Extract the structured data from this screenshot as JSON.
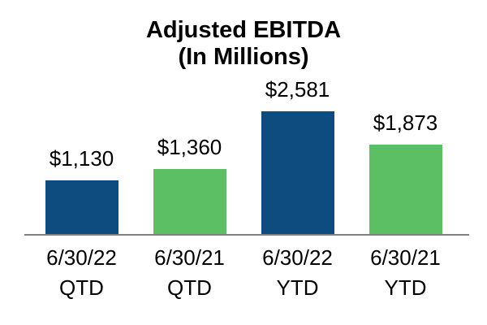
{
  "chart_data": {
    "type": "bar",
    "title": "Adjusted EBITDA",
    "subtitle": "(In Millions)",
    "categories": [
      "6/30/22 QTD",
      "6/30/21 QTD",
      "6/30/22 YTD",
      "6/30/21 YTD"
    ],
    "category_lines": [
      [
        "6/30/22",
        "QTD"
      ],
      [
        "6/30/21",
        "QTD"
      ],
      [
        "6/30/22",
        "YTD"
      ],
      [
        "6/30/21",
        "YTD"
      ]
    ],
    "values": [
      1130,
      1360,
      2581,
      1873
    ],
    "value_labels": [
      "$1,130",
      "$1,360",
      "$2,581",
      "$1,873"
    ],
    "bar_colors": [
      "#0E4C80",
      "#5CBF63",
      "#0E4C80",
      "#5CBF63"
    ],
    "colors": {
      "bar_2022_blue": "#0E4C80",
      "bar_2021_green": "#5CBF63",
      "axis_line": "#808080",
      "text": "#000000",
      "background": "#ffffff"
    },
    "xlabel": "",
    "ylabel": "",
    "ylim": [
      0,
      2581
    ],
    "grid": false,
    "legend": false,
    "data_labels_position": "above-bars"
  }
}
